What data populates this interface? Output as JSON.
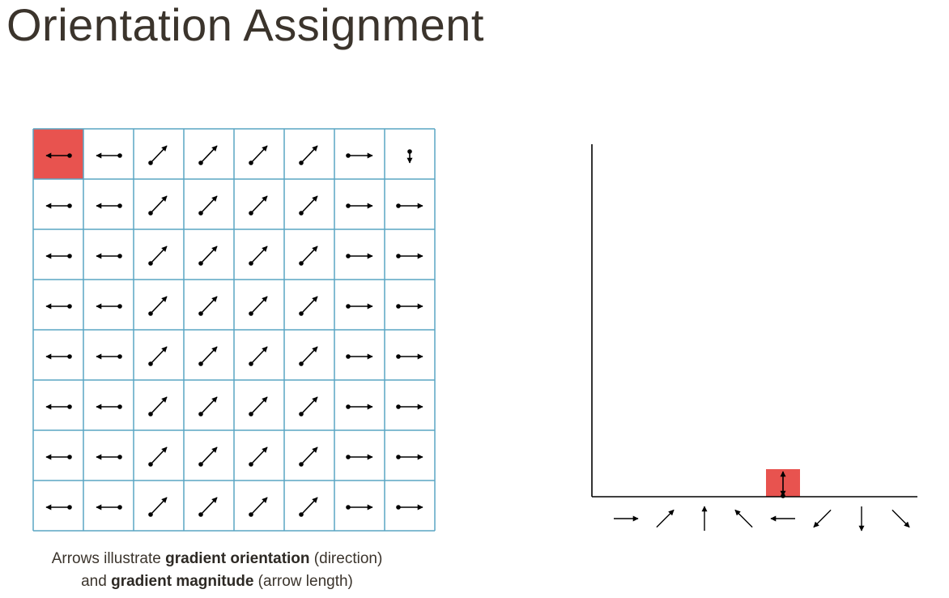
{
  "title": "Orientation Assignment",
  "caption": {
    "line1_prefix": "Arrows illustrate ",
    "line1_bold": "gradient orientation",
    "line1_suffix": " (direction)",
    "line2_prefix": "and ",
    "line2_bold": "gradient magnitude",
    "line2_suffix": " (arrow length)"
  },
  "colors": {
    "grid_line": "#5aa5c4",
    "highlight": "#e8534f",
    "arrow": "#000000",
    "text": "#3b342c"
  },
  "grid": {
    "rows": 8,
    "cols": 8,
    "highlight_cell": [
      0,
      0
    ],
    "arrow_directions": [
      [
        "left",
        "left",
        "up-right",
        "up-right",
        "up-right",
        "up-right",
        "right",
        "down"
      ],
      [
        "left",
        "left",
        "up-right",
        "up-right",
        "up-right",
        "up-right",
        "right",
        "right"
      ],
      [
        "left",
        "left",
        "up-right",
        "up-right",
        "up-right",
        "up-right",
        "right",
        "right"
      ],
      [
        "left",
        "left",
        "up-right",
        "up-right",
        "up-right",
        "up-right",
        "right",
        "right"
      ],
      [
        "left",
        "left",
        "up-right",
        "up-right",
        "up-right",
        "up-right",
        "right",
        "right"
      ],
      [
        "left",
        "left",
        "up-right",
        "up-right",
        "up-right",
        "up-right",
        "right",
        "right"
      ],
      [
        "left",
        "left",
        "up-right",
        "up-right",
        "up-right",
        "up-right",
        "right",
        "right"
      ],
      [
        "left",
        "left",
        "up-right",
        "up-right",
        "up-right",
        "up-right",
        "right",
        "right"
      ]
    ]
  },
  "histogram": {
    "bins": [
      "right",
      "up-right",
      "up",
      "up-left",
      "left",
      "down-left",
      "down",
      "down-right"
    ],
    "highlight_bin": 4,
    "bin_count": [
      0,
      0,
      0,
      0,
      1,
      0,
      0,
      0
    ]
  }
}
